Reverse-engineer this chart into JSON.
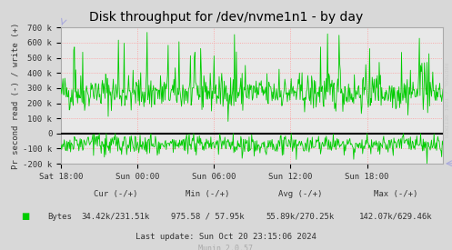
{
  "title": "Disk throughput for /dev/nvme1n1 - by day",
  "ylabel": "Pr second read (-) / write (+)",
  "xlabel_ticks": [
    "Sat 18:00",
    "Sun 00:00",
    "Sun 06:00",
    "Sun 12:00",
    "Sun 18:00"
  ],
  "ylim": [
    -200000,
    700000
  ],
  "yticks": [
    -200000,
    -100000,
    0,
    100000,
    200000,
    300000,
    400000,
    500000,
    600000,
    700000
  ],
  "ytick_labels": [
    "-200 k",
    "-100 k",
    "0",
    "100 k",
    "200 k",
    "300 k",
    "400 k",
    "500 k",
    "600 k",
    "700 k"
  ],
  "bg_color": "#d8d8d8",
  "plot_bg_color": "#e8e8e8",
  "line_color": "#00cc00",
  "grid_color": "#ff9999",
  "zero_line_color": "#000000",
  "legend_label": "Bytes",
  "footer_cur": "Cur (-/+)",
  "footer_cur_val": "34.42k/231.51k",
  "footer_min": "Min (-/+)",
  "footer_min_val": "975.58 / 57.95k",
  "footer_avg": "Avg (-/+)",
  "footer_avg_val": "55.89k/270.25k",
  "footer_max": "Max (-/+)",
  "footer_max_val": "142.07k/629.46k",
  "footer_last": "Last update: Sun Oct 20 23:15:06 2024",
  "munin_version": "Munin 2.0.57",
  "rrdtool_label": "RRDTOOL / TOBI OETIKER",
  "num_points": 600,
  "write_base": 270000,
  "read_base": -70000,
  "seed": 42
}
